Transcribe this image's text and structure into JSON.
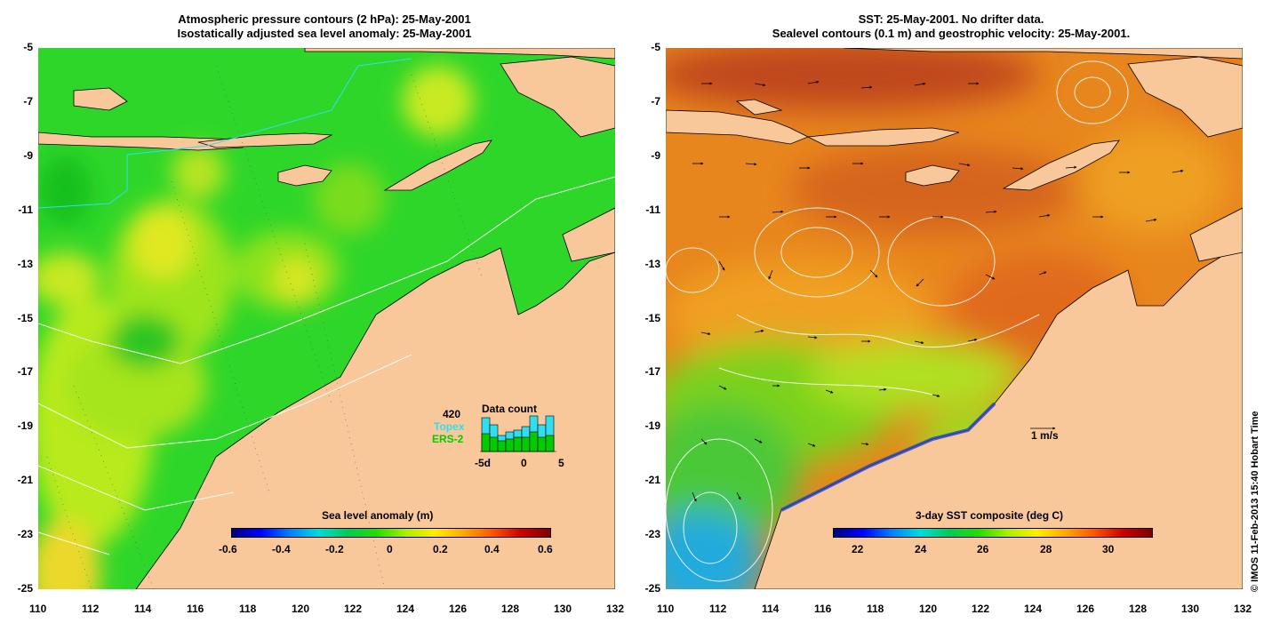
{
  "left_panel": {
    "title_line1": "Atmospheric pressure contours (2 hPa): 25-May-2001",
    "title_line2": "Isostatically adjusted sea level anomaly: 25-May-2001",
    "colorbar": {
      "label": "Sea level anomaly (m)",
      "ticks": [
        "-0.6",
        "-0.4",
        "-0.2",
        "0",
        "0.2",
        "0.4",
        "0.6"
      ],
      "range": [
        -0.6,
        0.6
      ]
    },
    "data_count": {
      "title": "Data count",
      "total": "420",
      "series1": "Topex",
      "series2": "ERS-2",
      "series1_color": "#33ddee",
      "series2_color": "#00cc00",
      "axis_ticks": [
        "-5d",
        "0",
        "5"
      ]
    }
  },
  "right_panel": {
    "title_line1": "SST: 25-May-2001. No drifter data.",
    "title_line2": "Sealevel contours (0.1 m) and geostrophic velocity: 25-May-2001.",
    "colorbar": {
      "label": "3-day SST composite (deg C)",
      "ticks": [
        "22",
        "24",
        "26",
        "28",
        "30"
      ],
      "range": [
        21,
        31
      ]
    },
    "scale_label": "1 m/s"
  },
  "axes": {
    "x_ticks": [
      "110",
      "112",
      "114",
      "116",
      "118",
      "120",
      "122",
      "124",
      "126",
      "128",
      "130",
      "132"
    ],
    "y_ticks": [
      "-5",
      "-7",
      "-9",
      "-11",
      "-13",
      "-15",
      "-17",
      "-19",
      "-21",
      "-23",
      "-25"
    ],
    "lon_range": [
      110,
      132
    ],
    "lat_range": [
      -25,
      -5
    ]
  },
  "credit": "© IMOS 11-Feb-2013 15:40 Hobart Time",
  "colors": {
    "land": "#f9c89a",
    "ocean_left": "#22cc22",
    "ocean_right": "#e8861e"
  }
}
